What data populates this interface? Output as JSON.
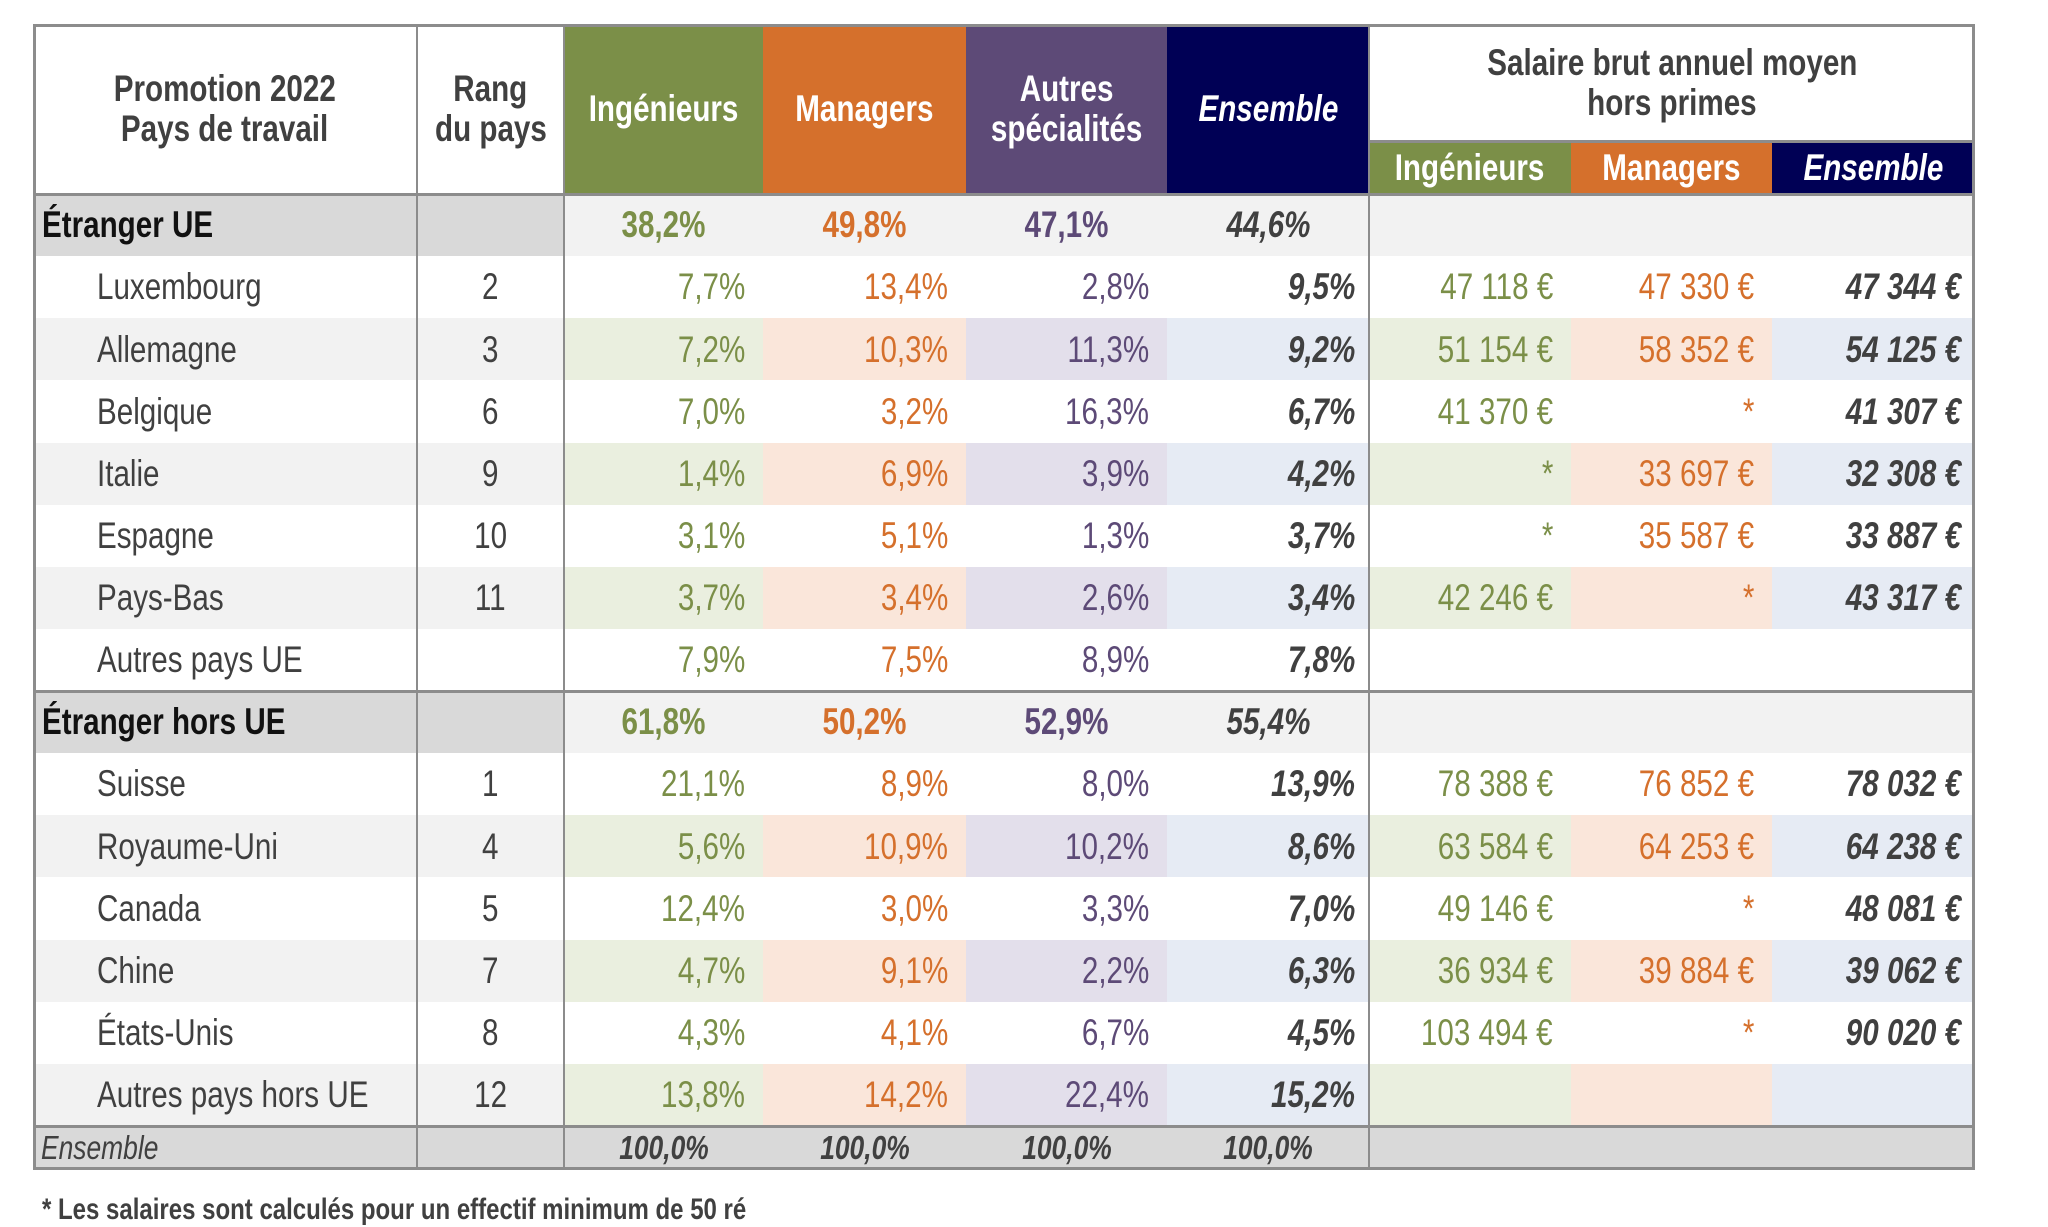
{
  "colors": {
    "ingenieurs": "#7b8f48",
    "managers": "#d5702c",
    "autres": "#5d4a77",
    "ensemble": "#000055",
    "text": "#404040",
    "section_label_bg": "#d9d9d9",
    "section_data_bg": "#f2f2f2",
    "tint_ingenieurs": "#eaefdf",
    "tint_managers": "#fae6da",
    "tint_autres": "#e3dfeb",
    "tint_ensemble": "#e6ebf4",
    "tint_label": "#f2f2f2"
  },
  "header": {
    "pays_line1": "Promotion 2022",
    "pays_line2": "Pays de travail",
    "rang_line1": "Rang",
    "rang_line2": "du pays",
    "ingenieurs": "Ingénieurs",
    "managers": "Managers",
    "autres_line1": "Autres",
    "autres_line2": "spécialités",
    "ensemble": "Ensemble",
    "salaire_line1": "Salaire brut annuel moyen",
    "salaire_line2": "hors primes",
    "sal_ingenieurs": "Ingénieurs",
    "sal_managers": "Managers",
    "sal_ensemble": "Ensemble"
  },
  "rows": [
    {
      "type": "section",
      "label": "Étranger UE",
      "rang": "",
      "ing": "38,2%",
      "man": "49,8%",
      "aut": "47,1%",
      "ens": "44,6%",
      "s_ing": "",
      "s_man": "",
      "s_ens": ""
    },
    {
      "type": "country",
      "shaded": false,
      "label": "Luxembourg",
      "rang": "2",
      "ing": "7,7%",
      "man": "13,4%",
      "aut": "2,8%",
      "ens": "9,5%",
      "s_ing": "47 118 €",
      "s_man": "47 330 €",
      "s_ens": "47 344 €"
    },
    {
      "type": "country",
      "shaded": true,
      "label": "Allemagne",
      "rang": "3",
      "ing": "7,2%",
      "man": "10,3%",
      "aut": "11,3%",
      "ens": "9,2%",
      "s_ing": "51 154 €",
      "s_man": "58 352 €",
      "s_ens": "54 125 €"
    },
    {
      "type": "country",
      "shaded": false,
      "label": "Belgique",
      "rang": "6",
      "ing": "7,0%",
      "man": "3,2%",
      "aut": "16,3%",
      "ens": "6,7%",
      "s_ing": "41 370 €",
      "s_man": "*",
      "s_ens": "41 307 €"
    },
    {
      "type": "country",
      "shaded": true,
      "label": "Italie",
      "rang": "9",
      "ing": "1,4%",
      "man": "6,9%",
      "aut": "3,9%",
      "ens": "4,2%",
      "s_ing": "*",
      "s_man": "33 697 €",
      "s_ens": "32 308 €"
    },
    {
      "type": "country",
      "shaded": false,
      "label": "Espagne",
      "rang": "10",
      "ing": "3,1%",
      "man": "5,1%",
      "aut": "1,3%",
      "ens": "3,7%",
      "s_ing": "*",
      "s_man": "35 587 €",
      "s_ens": "33 887 €"
    },
    {
      "type": "country",
      "shaded": true,
      "label": "Pays-Bas",
      "rang": "11",
      "ing": "3,7%",
      "man": "3,4%",
      "aut": "2,6%",
      "ens": "3,4%",
      "s_ing": "42 246 €",
      "s_man": "*",
      "s_ens": "43 317 €"
    },
    {
      "type": "country",
      "shaded": false,
      "label": "Autres pays UE",
      "rang": "",
      "ing": "7,9%",
      "man": "7,5%",
      "aut": "8,9%",
      "ens": "7,8%",
      "s_ing": "",
      "s_man": "",
      "s_ens": ""
    },
    {
      "type": "section",
      "label": "Étranger hors UE",
      "rang": "",
      "ing": "61,8%",
      "man": "50,2%",
      "aut": "52,9%",
      "ens": "55,4%",
      "s_ing": "",
      "s_man": "",
      "s_ens": ""
    },
    {
      "type": "country",
      "shaded": false,
      "label": "Suisse",
      "rang": "1",
      "ing": "21,1%",
      "man": "8,9%",
      "aut": "8,0%",
      "ens": "13,9%",
      "s_ing": "78 388 €",
      "s_man": "76 852 €",
      "s_ens": "78 032 €"
    },
    {
      "type": "country",
      "shaded": true,
      "label": "Royaume-Uni",
      "rang": "4",
      "ing": "5,6%",
      "man": "10,9%",
      "aut": "10,2%",
      "ens": "8,6%",
      "s_ing": "63 584 €",
      "s_man": "64 253 €",
      "s_ens": "64 238 €"
    },
    {
      "type": "country",
      "shaded": false,
      "label": "Canada",
      "rang": "5",
      "ing": "12,4%",
      "man": "3,0%",
      "aut": "3,3%",
      "ens": "7,0%",
      "s_ing": "49 146 €",
      "s_man": "*",
      "s_ens": "48 081 €"
    },
    {
      "type": "country",
      "shaded": true,
      "label": "Chine",
      "rang": "7",
      "ing": "4,7%",
      "man": "9,1%",
      "aut": "2,2%",
      "ens": "6,3%",
      "s_ing": "36 934 €",
      "s_man": "39 884 €",
      "s_ens": "39 062 €"
    },
    {
      "type": "country",
      "shaded": false,
      "label": "États-Unis",
      "rang": "8",
      "ing": "4,3%",
      "man": "4,1%",
      "aut": "6,7%",
      "ens": "4,5%",
      "s_ing": "103 494 €",
      "s_man": "*",
      "s_ens": "90 020 €"
    },
    {
      "type": "country",
      "shaded": true,
      "label": "Autres pays hors UE",
      "rang": "12",
      "ing": "13,8%",
      "man": "14,2%",
      "aut": "22,4%",
      "ens": "15,2%",
      "s_ing": "",
      "s_man": "",
      "s_ens": ""
    }
  ],
  "footer": {
    "label": "Ensemble",
    "ing": "100,0%",
    "man": "100,0%",
    "aut": "100,0%",
    "ens": "100,0%"
  },
  "footnote": "* Les salaires sont calculés pour un effectif minimum de 50 ré"
}
